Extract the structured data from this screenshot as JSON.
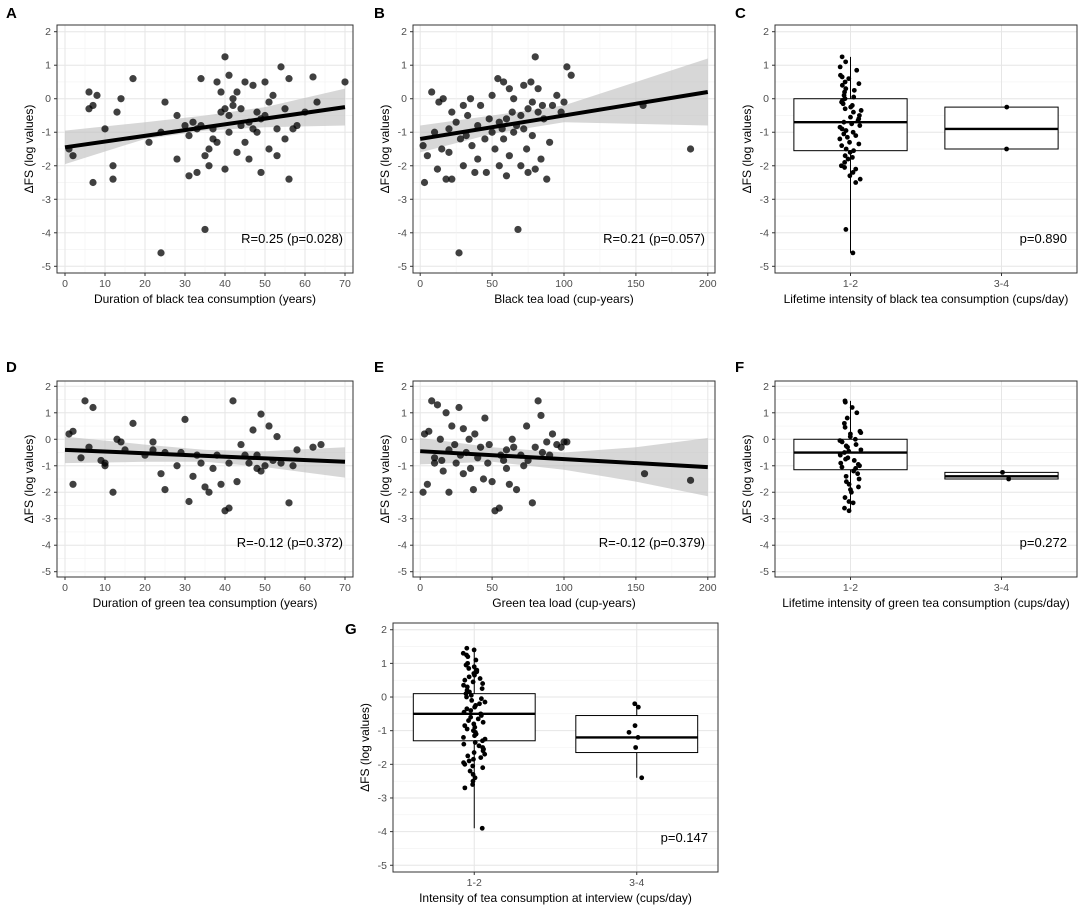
{
  "figure": {
    "y_axis_label": "ΔFS (log values)"
  },
  "chart_data": [
    {
      "panel": "A",
      "type": "scatter",
      "xlabel": "Duration of black tea consumption (years)",
      "ylabel": "ΔFS (log values)",
      "xlim": [
        -2,
        72
      ],
      "ylim": [
        -5.2,
        2.2
      ],
      "xticks": [
        0,
        10,
        20,
        30,
        40,
        50,
        60,
        70
      ],
      "yticks": [
        -5,
        -4,
        -3,
        -2,
        -1,
        0,
        1,
        2
      ],
      "annotation": "R=0.25 (p=0.028)",
      "fit": {
        "x": [
          0,
          70
        ],
        "y": [
          -1.45,
          -0.25
        ]
      },
      "ci_band": {
        "x": [
          0,
          20,
          35,
          50,
          70
        ],
        "lower": [
          -1.95,
          -1.2,
          -0.95,
          -0.85,
          -0.8
        ],
        "upper": [
          -0.95,
          -0.7,
          -0.5,
          -0.25,
          0.3
        ]
      },
      "points": {
        "x": [
          1,
          2,
          6,
          6,
          7,
          7,
          8,
          10,
          12,
          12,
          13,
          14,
          17,
          21,
          24,
          24,
          25,
          28,
          28,
          30,
          31,
          31,
          32,
          33,
          33,
          34,
          34,
          35,
          35,
          36,
          36,
          37,
          37,
          38,
          38,
          39,
          39,
          40,
          40,
          40,
          41,
          41,
          41,
          42,
          42,
          43,
          43,
          44,
          44,
          45,
          45,
          46,
          46,
          47,
          47,
          48,
          48,
          49,
          49,
          50,
          50,
          51,
          51,
          52,
          53,
          53,
          54,
          55,
          55,
          56,
          56,
          57,
          58,
          60,
          62,
          63,
          70
        ],
        "y": [
          -1.5,
          -1.7,
          -0.3,
          0.2,
          -0.2,
          -2.5,
          0.1,
          -0.9,
          -2.0,
          -2.4,
          -0.4,
          0.0,
          0.6,
          -1.3,
          -4.6,
          -1.0,
          -0.1,
          -0.5,
          -1.8,
          -0.8,
          -2.3,
          -1.1,
          -0.7,
          -0.9,
          -2.2,
          -0.8,
          0.6,
          -3.9,
          -1.7,
          -1.5,
          -2.0,
          -0.9,
          -1.2,
          0.5,
          -1.3,
          -0.4,
          0.2,
          1.25,
          -2.1,
          -0.3,
          0.7,
          -0.5,
          -1.0,
          0.0,
          -0.2,
          0.2,
          -1.6,
          -0.3,
          -0.8,
          -1.3,
          0.5,
          -0.7,
          -1.8,
          -0.9,
          0.4,
          -0.4,
          -1.0,
          -0.6,
          -2.2,
          -0.5,
          0.5,
          -1.5,
          -0.1,
          0.1,
          -1.7,
          -0.9,
          0.95,
          -1.2,
          -0.3,
          0.6,
          -2.4,
          -0.9,
          -0.8,
          -0.4,
          0.65,
          -0.1,
          0.5
        ]
      }
    },
    {
      "panel": "B",
      "type": "scatter",
      "xlabel": "Black tea load (cup-years)",
      "ylabel": "ΔFS (log values)",
      "xlim": [
        -5,
        205
      ],
      "ylim": [
        -5.2,
        2.2
      ],
      "xticks": [
        0,
        50,
        100,
        150,
        200
      ],
      "yticks": [
        -5,
        -4,
        -3,
        -2,
        -1,
        0,
        1,
        2
      ],
      "annotation": "R=0.21 (p=0.057)",
      "fit": {
        "x": [
          0,
          200
        ],
        "y": [
          -1.2,
          0.2
        ]
      },
      "ci_band": {
        "x": [
          0,
          50,
          100,
          150,
          200
        ],
        "lower": [
          -1.6,
          -1.05,
          -0.7,
          -0.75,
          -0.8
        ],
        "upper": [
          -0.8,
          -0.5,
          -0.2,
          0.5,
          1.2
        ]
      },
      "points": {
        "x": [
          2,
          3,
          5,
          8,
          10,
          12,
          13,
          15,
          16,
          18,
          20,
          20,
          22,
          22,
          25,
          27,
          28,
          30,
          30,
          32,
          33,
          35,
          36,
          38,
          40,
          40,
          42,
          45,
          46,
          48,
          50,
          50,
          52,
          54,
          55,
          55,
          57,
          58,
          58,
          60,
          60,
          62,
          62,
          64,
          65,
          65,
          67,
          68,
          70,
          70,
          72,
          72,
          74,
          75,
          75,
          77,
          78,
          78,
          80,
          80,
          82,
          82,
          84,
          85,
          86,
          88,
          90,
          92,
          95,
          98,
          100,
          102,
          105,
          155,
          188
        ],
        "y": [
          -1.4,
          -2.5,
          -1.7,
          0.2,
          -1.0,
          -2.1,
          -0.1,
          -1.5,
          0.0,
          -2.4,
          -0.9,
          -1.6,
          -0.4,
          -2.4,
          -0.7,
          -4.6,
          -1.2,
          -0.2,
          -2.0,
          -1.1,
          -0.5,
          0.0,
          -1.4,
          -2.2,
          -0.8,
          -1.8,
          -0.2,
          -1.2,
          -2.2,
          -0.6,
          -1.0,
          0.1,
          -1.5,
          0.6,
          -0.7,
          -2.0,
          -0.9,
          0.5,
          -1.2,
          -2.3,
          -0.6,
          0.3,
          -1.7,
          -0.4,
          -1.0,
          0.0,
          -0.8,
          -3.9,
          -2.0,
          -0.5,
          -0.9,
          0.4,
          -1.5,
          -0.3,
          -2.2,
          0.5,
          -1.1,
          -0.1,
          1.25,
          -2.1,
          -0.4,
          0.3,
          -1.8,
          -0.2,
          -0.6,
          -2.4,
          -1.3,
          -0.2,
          0.1,
          -0.4,
          -0.1,
          0.95,
          0.7,
          -0.2,
          -1.5
        ]
      }
    },
    {
      "panel": "C",
      "type": "box",
      "xlabel": "Lifetime intensity of black tea consumption (cups/day)",
      "ylabel": "ΔFS (log values)",
      "categories": [
        "1-2",
        "3-4"
      ],
      "ylim": [
        -5.2,
        2.2
      ],
      "yticks": [
        -5,
        -4,
        -3,
        -2,
        -1,
        0,
        1,
        2
      ],
      "annotation": "p=0.890",
      "boxes": [
        {
          "q1": -1.55,
          "median": -0.7,
          "q3": 0.0,
          "lower": -4.6,
          "upper": 1.25
        },
        {
          "q1": -1.5,
          "median": -0.9,
          "q3": -0.25,
          "lower": -1.5,
          "upper": -0.25
        }
      ],
      "points": [
        {
          "cat": 0,
          "values": [
            1.25,
            1.1,
            0.95,
            0.85,
            0.7,
            0.65,
            0.6,
            0.5,
            0.45,
            0.4,
            0.3,
            0.25,
            0.2,
            0.1,
            0.05,
            0.0,
            -0.05,
            -0.1,
            -0.15,
            -0.2,
            -0.25,
            -0.3,
            -0.35,
            -0.4,
            -0.5,
            -0.55,
            -0.6,
            -0.65,
            -0.7,
            -0.75,
            -0.8,
            -0.85,
            -0.9,
            -0.95,
            -1.0,
            -1.05,
            -1.1,
            -1.15,
            -1.2,
            -1.3,
            -1.35,
            -1.4,
            -1.5,
            -1.55,
            -1.6,
            -1.7,
            -1.75,
            -1.8,
            -1.9,
            -2.0,
            -2.05,
            -2.1,
            -2.2,
            -2.3,
            -2.4,
            -2.5,
            -3.9,
            -4.6
          ]
        },
        {
          "cat": 1,
          "values": [
            -0.25,
            -1.5
          ]
        }
      ]
    },
    {
      "panel": "D",
      "type": "scatter",
      "xlabel": "Duration of green tea consumption (years)",
      "ylabel": "ΔFS (log values)",
      "xlim": [
        -2,
        72
      ],
      "ylim": [
        -5.2,
        2.2
      ],
      "xticks": [
        0,
        10,
        20,
        30,
        40,
        50,
        60,
        70
      ],
      "yticks": [
        -5,
        -4,
        -3,
        -2,
        -1,
        0,
        1,
        2
      ],
      "annotation": "R=-0.12 (p=0.372)",
      "fit": {
        "x": [
          0,
          70
        ],
        "y": [
          -0.4,
          -0.85
        ]
      },
      "ci_band": {
        "x": [
          0,
          20,
          35,
          50,
          70
        ],
        "lower": [
          -0.9,
          -0.85,
          -0.85,
          -1.05,
          -1.45
        ],
        "upper": [
          0.1,
          -0.2,
          -0.4,
          -0.45,
          -0.3
        ]
      },
      "points": {
        "x": [
          1,
          2,
          2,
          4,
          5,
          6,
          7,
          9,
          10,
          10,
          12,
          13,
          14,
          15,
          17,
          20,
          22,
          22,
          24,
          25,
          25,
          28,
          29,
          30,
          31,
          32,
          33,
          34,
          35,
          36,
          37,
          38,
          39,
          40,
          41,
          41,
          42,
          43,
          44,
          45,
          46,
          47,
          48,
          48,
          49,
          49,
          50,
          51,
          52,
          53,
          54,
          56,
          57,
          58,
          62,
          64
        ],
        "y": [
          0.2,
          0.3,
          -1.7,
          -0.7,
          1.45,
          -0.3,
          1.2,
          -0.8,
          -1.0,
          -0.9,
          -2.0,
          0.0,
          -0.1,
          -0.4,
          0.6,
          -0.6,
          -0.4,
          -0.1,
          -1.3,
          -0.5,
          -1.9,
          -1.0,
          -0.5,
          0.75,
          -2.35,
          -1.4,
          -0.6,
          -0.9,
          -1.8,
          -2.0,
          -1.1,
          -0.6,
          -1.7,
          -2.7,
          -2.6,
          -0.9,
          1.45,
          -1.6,
          -0.2,
          -0.6,
          -0.9,
          0.35,
          -0.6,
          -1.1,
          -1.2,
          0.95,
          -1.0,
          0.5,
          -0.8,
          0.1,
          -0.9,
          -2.4,
          -1.0,
          -0.4,
          -0.3,
          -0.2
        ]
      }
    },
    {
      "panel": "E",
      "type": "scatter",
      "xlabel": "Green tea load (cup-years)",
      "ylabel": "ΔFS (log values)",
      "xlim": [
        -5,
        205
      ],
      "ylim": [
        -5.2,
        2.2
      ],
      "xticks": [
        0,
        50,
        100,
        150,
        200
      ],
      "yticks": [
        -5,
        -4,
        -3,
        -2,
        -1,
        0,
        1,
        2
      ],
      "annotation": "R=-0.12 (p=0.379)",
      "fit": {
        "x": [
          0,
          200
        ],
        "y": [
          -0.45,
          -1.05
        ]
      },
      "ci_band": {
        "x": [
          0,
          50,
          100,
          150,
          200
        ],
        "lower": [
          -0.95,
          -0.85,
          -1.15,
          -1.6,
          -2.15
        ],
        "upper": [
          0.05,
          -0.3,
          -0.5,
          -0.3,
          0.05
        ]
      },
      "points": {
        "x": [
          2,
          3,
          5,
          6,
          8,
          10,
          10,
          12,
          14,
          15,
          16,
          18,
          20,
          20,
          22,
          24,
          25,
          27,
          28,
          30,
          30,
          32,
          34,
          35,
          37,
          38,
          40,
          42,
          44,
          45,
          47,
          48,
          50,
          52,
          55,
          56,
          58,
          60,
          60,
          62,
          64,
          65,
          67,
          70,
          72,
          74,
          75,
          78,
          80,
          82,
          84,
          85,
          88,
          90,
          92,
          95,
          98,
          100,
          102,
          156,
          188
        ],
        "y": [
          -2.0,
          0.2,
          -1.7,
          0.3,
          1.45,
          -0.7,
          -0.9,
          1.3,
          0.0,
          -0.8,
          -1.2,
          1.0,
          -0.4,
          -2.0,
          0.5,
          -0.2,
          -0.9,
          1.2,
          -0.6,
          0.4,
          -1.3,
          -0.5,
          0.0,
          -1.1,
          -1.9,
          0.2,
          -0.7,
          -0.3,
          -1.5,
          0.8,
          -0.9,
          -0.2,
          -1.6,
          -2.7,
          -2.6,
          -0.6,
          -0.8,
          -0.4,
          -1.1,
          -1.7,
          0.0,
          -0.3,
          -1.9,
          -0.6,
          -1.0,
          0.5,
          -0.8,
          -2.4,
          -0.3,
          1.45,
          0.9,
          -0.5,
          -0.1,
          -0.6,
          0.2,
          -0.2,
          -0.3,
          -0.1,
          -0.1,
          -1.3,
          -1.55
        ]
      }
    },
    {
      "panel": "F",
      "type": "box",
      "xlabel": "Lifetime intensity of green tea consumption (cups/day)",
      "ylabel": "ΔFS (log values)",
      "categories": [
        "1-2",
        "3-4"
      ],
      "ylim": [
        -5.2,
        2.2
      ],
      "yticks": [
        -5,
        -4,
        -3,
        -2,
        -1,
        0,
        1,
        2
      ],
      "annotation": "p=0.272",
      "boxes": [
        {
          "q1": -1.15,
          "median": -0.5,
          "q3": 0.0,
          "lower": -2.7,
          "upper": 1.45
        },
        {
          "q1": -1.5,
          "median": -1.4,
          "q3": -1.25,
          "lower": -1.5,
          "upper": -1.25
        }
      ],
      "points": [
        {
          "cat": 0,
          "values": [
            1.45,
            1.4,
            1.2,
            1.0,
            0.8,
            0.6,
            0.45,
            0.3,
            0.25,
            0.2,
            0.1,
            0.0,
            -0.05,
            -0.1,
            -0.2,
            -0.25,
            -0.3,
            -0.4,
            -0.45,
            -0.5,
            -0.55,
            -0.6,
            -0.7,
            -0.75,
            -0.8,
            -0.9,
            -0.95,
            -1.0,
            -1.05,
            -1.1,
            -1.2,
            -1.3,
            -1.4,
            -1.5,
            -1.6,
            -1.7,
            -1.8,
            -1.9,
            -2.0,
            -2.2,
            -2.35,
            -2.4,
            -2.6,
            -2.7
          ]
        },
        {
          "cat": 1,
          "values": [
            -1.25,
            -1.5
          ]
        }
      ]
    },
    {
      "panel": "G",
      "type": "box",
      "xlabel": "Intensity of tea consumption at interview (cups/day)",
      "ylabel": "ΔFS (log values)",
      "categories": [
        "1-2",
        "3-4"
      ],
      "ylim": [
        -5.2,
        2.2
      ],
      "yticks": [
        -5,
        -4,
        -3,
        -2,
        -1,
        0,
        1,
        2
      ],
      "annotation": "p=0.147",
      "boxes": [
        {
          "q1": -1.3,
          "median": -0.5,
          "q3": 0.1,
          "lower": -3.9,
          "upper": 1.45
        },
        {
          "q1": -1.65,
          "median": -1.2,
          "q3": -0.55,
          "lower": -2.4,
          "upper": -0.2
        }
      ],
      "points": [
        {
          "cat": 0,
          "values": [
            1.45,
            1.4,
            1.3,
            1.25,
            1.2,
            1.1,
            1.0,
            0.95,
            0.9,
            0.85,
            0.8,
            0.75,
            0.7,
            0.65,
            0.6,
            0.55,
            0.5,
            0.45,
            0.4,
            0.35,
            0.3,
            0.25,
            0.2,
            0.15,
            0.1,
            0.05,
            0.0,
            -0.05,
            -0.1,
            -0.15,
            -0.2,
            -0.25,
            -0.3,
            -0.35,
            -0.4,
            -0.45,
            -0.5,
            -0.55,
            -0.6,
            -0.65,
            -0.7,
            -0.75,
            -0.8,
            -0.85,
            -0.9,
            -0.95,
            -1.0,
            -1.05,
            -1.1,
            -1.15,
            -1.2,
            -1.25,
            -1.3,
            -1.35,
            -1.4,
            -1.45,
            -1.5,
            -1.55,
            -1.6,
            -1.65,
            -1.7,
            -1.75,
            -1.8,
            -1.85,
            -1.9,
            -1.95,
            -2.0,
            -2.05,
            -2.1,
            -2.2,
            -2.3,
            -2.4,
            -2.5,
            -2.6,
            -2.7,
            -3.9
          ]
        },
        {
          "cat": 1,
          "values": [
            -0.2,
            -0.3,
            -0.85,
            -1.05,
            -1.2,
            -1.5,
            -2.4
          ]
        }
      ]
    }
  ]
}
